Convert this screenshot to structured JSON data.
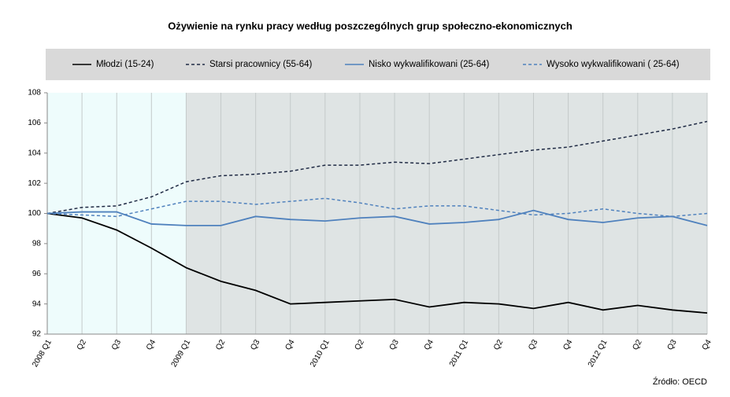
{
  "chart_data": {
    "type": "line",
    "title": "Ożywienie na rynku pracy według poszczególnych grup  społeczno-ekonomicznych",
    "categories": [
      "2008 Q1",
      "Q2",
      "Q3",
      "Q4",
      "2009 Q1",
      "Q2",
      "Q3",
      "Q4",
      "2010 Q1",
      "Q2",
      "Q3",
      "Q4",
      "2011 Q1",
      "Q2",
      "Q3",
      "Q4",
      "2012 Q1",
      "Q2",
      "Q3",
      "Q4"
    ],
    "series": [
      {
        "name": "Młodzi (15-24)",
        "color": "#000000",
        "dash": false,
        "values": [
          100,
          99.7,
          98.9,
          97.7,
          96.4,
          95.5,
          94.9,
          94.0,
          94.1,
          94.2,
          94.3,
          93.8,
          94.1,
          94.0,
          93.7,
          94.1,
          93.6,
          93.9,
          93.6,
          93.4
        ]
      },
      {
        "name": "Starsi pracownicy (55-64)",
        "color": "#1f2a44",
        "dash": true,
        "values": [
          100,
          100.4,
          100.5,
          101.1,
          102.1,
          102.5,
          102.6,
          102.8,
          103.2,
          103.2,
          103.4,
          103.3,
          103.6,
          103.9,
          104.2,
          104.4,
          104.8,
          105.2,
          105.6,
          106.1
        ]
      },
      {
        "name": "Nisko wykwalifikowani (25-64)",
        "color": "#4f81bd",
        "dash": false,
        "values": [
          100,
          100.1,
          100.1,
          99.3,
          99.2,
          99.2,
          99.8,
          99.6,
          99.5,
          99.7,
          99.8,
          99.3,
          99.4,
          99.6,
          100.2,
          99.6,
          99.4,
          99.7,
          99.8,
          99.2
        ]
      },
      {
        "name": "Wysoko wykwalifikowani ( 25-64)",
        "color": "#4f81bd",
        "dash": true,
        "values": [
          100,
          99.9,
          99.8,
          100.3,
          100.8,
          100.8,
          100.6,
          100.8,
          101.0,
          100.7,
          100.3,
          100.5,
          100.5,
          100.2,
          99.9,
          100.0,
          100.3,
          100.0,
          99.8,
          100.0
        ]
      }
    ],
    "ylim": [
      92,
      108
    ],
    "yticks": [
      92,
      94,
      96,
      98,
      100,
      102,
      104,
      106,
      108
    ],
    "source": "Źródło: OECD"
  }
}
